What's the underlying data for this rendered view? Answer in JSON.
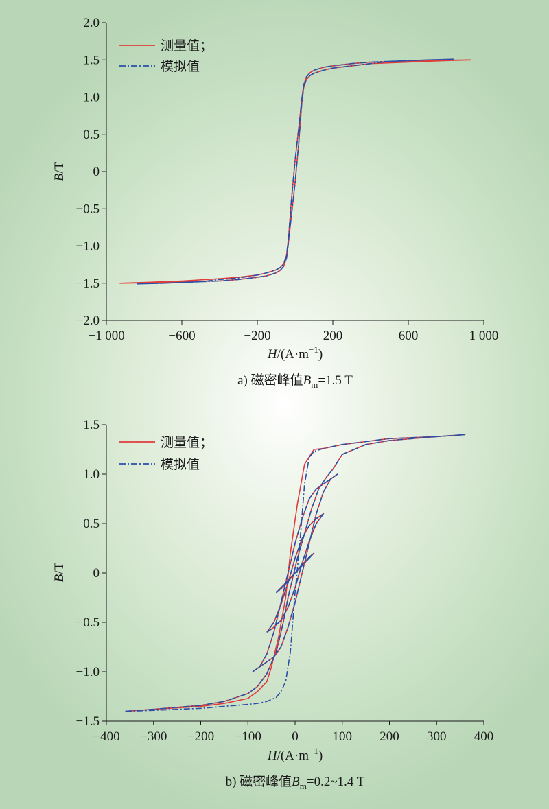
{
  "colors": {
    "measured": "#e03c3c",
    "simulated": "#2a4fa8",
    "axis": "#1a1a1a"
  },
  "chart_data": [
    {
      "type": "line",
      "xlabel": {
        "var": "H",
        "unit": "/(A·m",
        "sup": "−1",
        "close": ")"
      },
      "ylabel": {
        "var": "B",
        "unit": "/T"
      },
      "xlim": [
        -1000,
        1000
      ],
      "ylim": [
        -2.0,
        2.0
      ],
      "x_ticks": [
        -1000,
        -600,
        -200,
        200,
        600,
        1000
      ],
      "x_tick_labels": [
        "−1 000",
        "−600",
        "−200",
        "200",
        "600",
        "1 000"
      ],
      "y_ticks": [
        2.0,
        1.5,
        1.0,
        0.5,
        0,
        -0.5,
        -1.0,
        -1.5,
        -2.0
      ],
      "y_tick_labels": [
        "2.0",
        "1.5",
        "1.0",
        "0.5",
        "0",
        "−0.5",
        "−1.0",
        "−1.5",
        "−2.0"
      ],
      "legend": {
        "position": "top-left",
        "entries": [
          "测量值；",
          "模拟值"
        ]
      },
      "caption": {
        "prefix": "a) 磁密峰值",
        "var": "B",
        "sub": "m",
        "suffix": "=1.5 T"
      },
      "series": [
        {
          "name": "测量值；",
          "style": "solid",
          "x": [
            -930,
            -800,
            -600,
            -400,
            -300,
            -200,
            -150,
            -100,
            -80,
            -60,
            -45,
            -35,
            -20,
            0,
            20,
            35,
            45,
            60,
            80,
            100,
            150,
            200,
            300,
            400,
            600,
            800,
            930,
            800,
            600,
            400,
            300,
            200,
            150,
            100,
            80,
            60,
            45,
            35,
            20,
            0,
            -20,
            -35,
            -45,
            -60,
            -80,
            -100,
            -150,
            -200,
            -300,
            -400,
            -600,
            -800,
            -930
          ],
          "y": [
            -1.5,
            -1.49,
            -1.47,
            -1.44,
            -1.42,
            -1.39,
            -1.36,
            -1.32,
            -1.29,
            -1.24,
            -1.12,
            -0.9,
            -0.4,
            0.15,
            0.6,
            0.95,
            1.16,
            1.27,
            1.33,
            1.36,
            1.4,
            1.42,
            1.45,
            1.47,
            1.48,
            1.495,
            1.5,
            1.49,
            1.47,
            1.45,
            1.42,
            1.39,
            1.36,
            1.32,
            1.29,
            1.24,
            1.12,
            0.9,
            0.4,
            -0.15,
            -0.6,
            -0.95,
            -1.16,
            -1.27,
            -1.33,
            -1.36,
            -1.4,
            -1.42,
            -1.45,
            -1.47,
            -1.48,
            -1.495,
            -1.5
          ]
        },
        {
          "name": "模拟值",
          "style": "dash-dot",
          "x": [
            -840,
            -700,
            -500,
            -400,
            -300,
            -200,
            -150,
            -100,
            -80,
            -60,
            -45,
            -35,
            -20,
            0,
            20,
            35,
            45,
            60,
            80,
            100,
            150,
            200,
            300,
            400,
            500,
            700,
            840,
            700,
            500,
            400,
            300,
            200,
            150,
            100,
            80,
            60,
            45,
            35,
            20,
            0,
            -20,
            -35,
            -45,
            -60,
            -80,
            -100,
            -150,
            -200,
            -300,
            -400,
            -500,
            -700,
            -840
          ],
          "y": [
            -1.51,
            -1.5,
            -1.48,
            -1.45,
            -1.43,
            -1.39,
            -1.36,
            -1.32,
            -1.29,
            -1.24,
            -1.12,
            -0.9,
            -0.4,
            0.15,
            0.6,
            0.95,
            1.16,
            1.27,
            1.33,
            1.36,
            1.4,
            1.42,
            1.45,
            1.47,
            1.48,
            1.5,
            1.51,
            1.5,
            1.48,
            1.45,
            1.42,
            1.39,
            1.36,
            1.32,
            1.29,
            1.24,
            1.12,
            0.9,
            0.4,
            -0.15,
            -0.6,
            -0.95,
            -1.16,
            -1.27,
            -1.33,
            -1.36,
            -1.4,
            -1.42,
            -1.45,
            -1.47,
            -1.48,
            -1.5,
            -1.51
          ]
        }
      ]
    },
    {
      "type": "line",
      "xlabel": {
        "var": "H",
        "unit": "/(A·m",
        "sup": "−1",
        "close": ")"
      },
      "ylabel": {
        "var": "B",
        "unit": "/T"
      },
      "xlim": [
        -400,
        400
      ],
      "ylim": [
        -1.5,
        1.5
      ],
      "x_ticks": [
        -400,
        -300,
        -200,
        -100,
        0,
        100,
        200,
        300,
        400
      ],
      "x_tick_labels": [
        "−400",
        "−300",
        "−200",
        "−100",
        "0",
        "100",
        "200",
        "300",
        "400"
      ],
      "y_ticks": [
        1.5,
        1.0,
        0.5,
        0,
        -0.5,
        -1.0,
        -1.5
      ],
      "y_tick_labels": [
        "1.5",
        "1.0",
        "0.5",
        "0",
        "−0.5",
        "−1.0",
        "−1.5"
      ],
      "legend": {
        "position": "top-left",
        "entries": [
          "测量值；",
          "模拟值"
        ]
      },
      "caption": {
        "prefix": "b) 磁密峰值",
        "var": "B",
        "sub": "m",
        "suffix": "=0.2~1.4 T"
      },
      "series": [
        {
          "name": "测量值；",
          "style": "solid",
          "x": [
            -360,
            -300,
            -200,
            -150,
            -100,
            -80,
            -60,
            -40,
            -25,
            -15,
            -5,
            5,
            20,
            35,
            50,
            65,
            80,
            100,
            150,
            200,
            300,
            360,
            300,
            200,
            150,
            100,
            80,
            60,
            40,
            20,
            5,
            -10,
            -20,
            -35,
            -50,
            -60,
            -80,
            -100,
            -150,
            -200,
            -300,
            -360
          ],
          "y": [
            -1.4,
            -1.38,
            -1.34,
            -1.3,
            -1.22,
            -1.15,
            -1.02,
            -0.8,
            -0.5,
            -0.25,
            -0.05,
            0.15,
            0.4,
            0.65,
            0.85,
            0.96,
            1.05,
            1.2,
            1.3,
            1.34,
            1.38,
            1.4,
            1.38,
            1.36,
            1.33,
            1.3,
            1.28,
            1.26,
            1.25,
            1.1,
            0.7,
            0.2,
            -0.25,
            -0.65,
            -0.95,
            -1.1,
            -1.2,
            -1.27,
            -1.32,
            -1.35,
            -1.38,
            -1.4
          ]
        },
        {
          "name": "模拟值",
          "style": "dash-dot",
          "x": [
            -360,
            -300,
            -200,
            -150,
            -100,
            -80,
            -60,
            -40,
            -25,
            -15,
            -5,
            5,
            20,
            35,
            50,
            65,
            80,
            100,
            150,
            200,
            300,
            360,
            300,
            200,
            150,
            100,
            80,
            60,
            40,
            30,
            20,
            10,
            0,
            -10,
            -20,
            -30,
            -40,
            -60,
            -80,
            -100,
            -150,
            -200,
            -300,
            -360
          ],
          "y": [
            -1.4,
            -1.38,
            -1.34,
            -1.3,
            -1.22,
            -1.15,
            -1.02,
            -0.8,
            -0.5,
            -0.25,
            -0.05,
            0.15,
            0.4,
            0.65,
            0.85,
            0.96,
            1.05,
            1.2,
            1.3,
            1.34,
            1.38,
            1.4,
            1.38,
            1.36,
            1.33,
            1.3,
            1.28,
            1.26,
            1.23,
            1.17,
            0.9,
            0.3,
            -0.2,
            -0.8,
            -1.1,
            -1.2,
            -1.26,
            -1.3,
            -1.32,
            -1.33,
            -1.35,
            -1.37,
            -1.39,
            -1.4
          ]
        }
      ],
      "minor_loops": [
        {
          "peak": 1.0,
          "x": [
            -90,
            -75,
            -60,
            -45,
            -30,
            -15,
            0,
            15,
            30,
            45,
            60,
            75,
            90,
            75,
            60,
            45,
            30,
            15,
            0,
            -15,
            -30,
            -45,
            -60,
            -75,
            -90
          ],
          "y": [
            -1.0,
            -0.95,
            -0.9,
            -0.85,
            -0.75,
            -0.55,
            -0.3,
            0.0,
            0.3,
            0.6,
            0.82,
            0.95,
            1.0,
            0.95,
            0.9,
            0.85,
            0.75,
            0.55,
            0.3,
            0.0,
            -0.3,
            -0.6,
            -0.82,
            -0.95,
            -1.0
          ]
        },
        {
          "peak": 0.6,
          "x": [
            -60,
            -45,
            -30,
            -15,
            0,
            15,
            30,
            45,
            60,
            45,
            30,
            15,
            0,
            -15,
            -30,
            -45,
            -60
          ],
          "y": [
            -0.6,
            -0.55,
            -0.48,
            -0.35,
            -0.15,
            0.1,
            0.32,
            0.5,
            0.6,
            0.55,
            0.48,
            0.35,
            0.15,
            -0.1,
            -0.32,
            -0.5,
            -0.6
          ]
        },
        {
          "peak": 0.2,
          "x": [
            -40,
            -30,
            -20,
            -10,
            0,
            10,
            20,
            30,
            40,
            30,
            20,
            10,
            0,
            -10,
            -20,
            -30,
            -40
          ],
          "y": [
            -0.2,
            -0.15,
            -0.1,
            -0.05,
            0.0,
            0.06,
            0.11,
            0.16,
            0.2,
            0.15,
            0.1,
            0.05,
            0.0,
            -0.06,
            -0.11,
            -0.16,
            -0.2
          ]
        }
      ]
    }
  ]
}
